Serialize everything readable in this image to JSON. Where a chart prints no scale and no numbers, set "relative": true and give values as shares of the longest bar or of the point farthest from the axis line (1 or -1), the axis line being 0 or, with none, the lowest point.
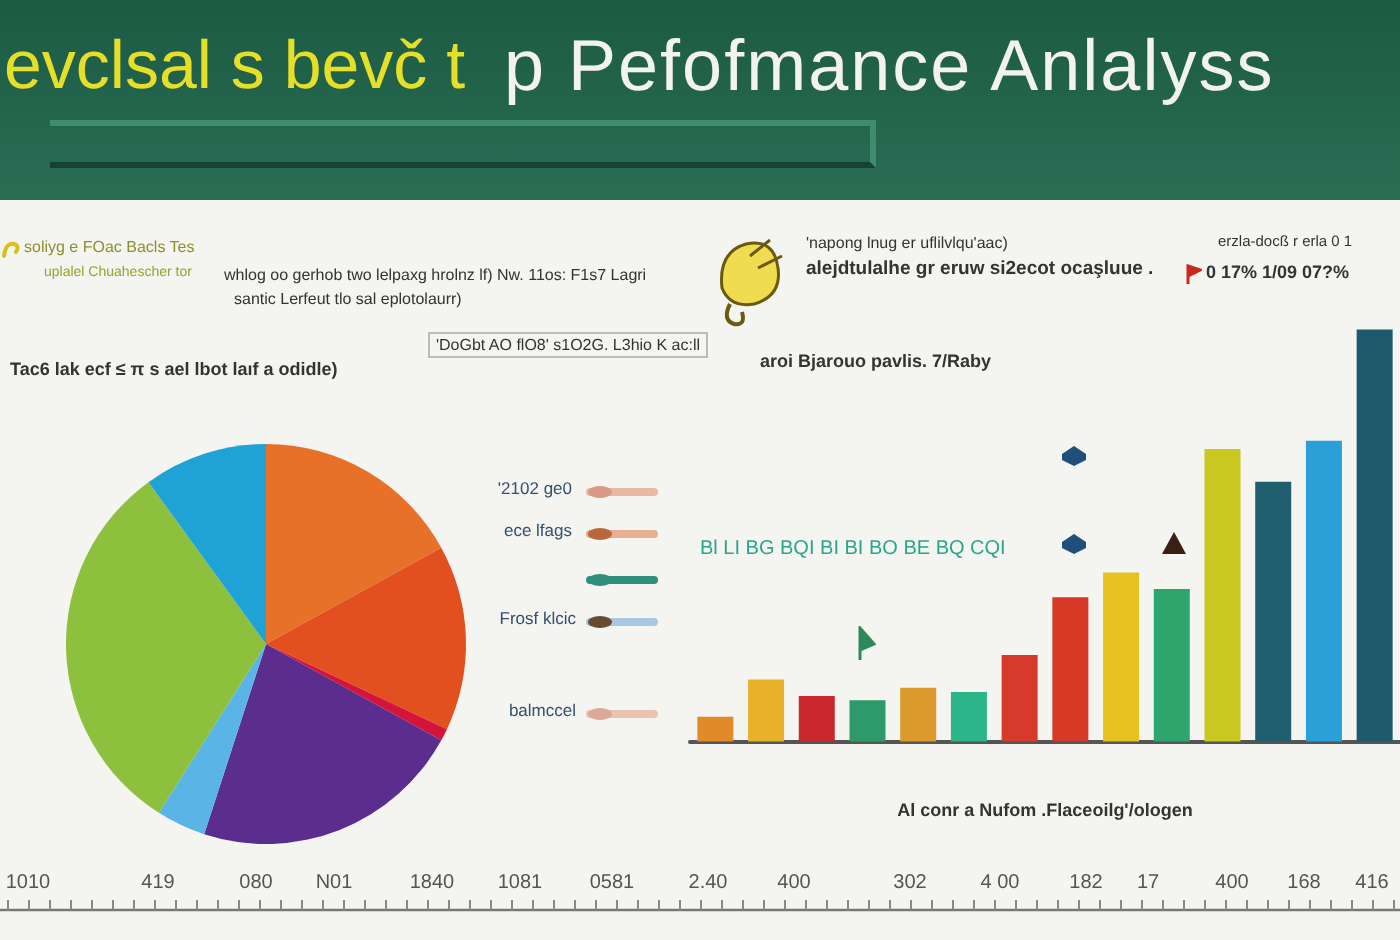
{
  "chart_data": [
    {
      "type": "other",
      "title": "evclsal s bevč t",
      "subtitle": "p Pefofmance Anlalyss",
      "annotations": [
        "1010",
        "419",
        "080",
        "N01",
        "1840",
        "1081",
        "0581",
        "2.40",
        "400",
        "302",
        "4 00",
        "182",
        "17",
        "400",
        "168",
        "416"
      ]
    },
    {
      "type": "pie",
      "title": "Tac6 lak ecf ≤ π s ael lbot laıf a odidle)",
      "categories": [
        null,
        null,
        null,
        null,
        null,
        null,
        null
      ],
      "values": [
        17,
        15,
        1,
        22,
        4,
        31,
        10
      ],
      "colors": [
        "#e8712a",
        "#e2501f",
        "#d4143a",
        "#5b2d8e",
        "#5ab4e5",
        "#8dc03c",
        "#1fa3d6"
      ],
      "annotations": [
        "soliyg e FOac Bacls Tes",
        "uplalel Chuahescher tor",
        "whlog oo gerhob two lelpaxg hrolnz lf) Nw. 11os: F1s7 Lagri",
        "santic Lerfeut tlo sal eplotolaurr)",
        "'DoGbt AO flO8' s1O2G. L3hio K ac:ll",
        "'2102 ge0",
        "ece lfags",
        "Frosf klcic",
        "balmccel"
      ]
    },
    {
      "type": "bar",
      "relative": true,
      "title": "aroi Bjarouo pavlis. 7/Raby",
      "xlabel": "Al conr a Nufom .Flaceoilg'/ologen",
      "categories": [
        null,
        null,
        null,
        null,
        null,
        null,
        null,
        null,
        null,
        null,
        null,
        null,
        null,
        null
      ],
      "values": [
        0.06,
        0.15,
        0.11,
        0.1,
        0.13,
        0.12,
        0.21,
        0.35,
        0.41,
        0.37,
        0.71,
        0.63,
        0.73,
        1
      ],
      "colors": [
        "#e08a2a",
        "#e8b12a",
        "#c8282e",
        "#2e9a6a",
        "#dc9a2c",
        "#2db58a",
        "#d63a2a",
        "#d63a26",
        "#e6c21e",
        "#2fa56e",
        "#c8c820",
        "#1f5f70",
        "#2a9fd8",
        "#1d5a6e"
      ],
      "annotations": [
        "'napong lnug er uflilvlqu'aac)",
        "alejdtulalhe gr eruw si2ecot ocaşluue .",
        "erzla-docß r erla 0 1",
        "0 17% 1/09 07?%",
        "Bl LI BG BQI BI BI BO BE BQ CQI"
      ]
    }
  ]
}
